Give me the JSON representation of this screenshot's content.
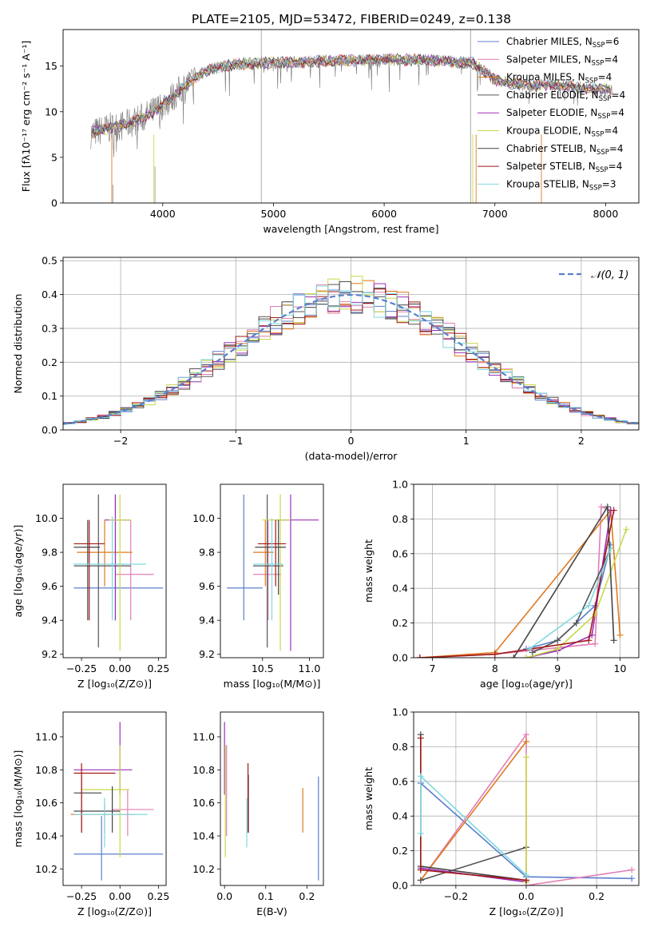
{
  "figure_title": "PLATE=2105, MJD=53472, FIBERID=0249, z=0.138",
  "model_colors": [
    "#5b7fcc",
    "#e27fb5",
    "#e07a1f",
    "#555555",
    "#9b30b8",
    "#c8d84a",
    "#444444",
    "#a01818",
    "#7fd8e0"
  ],
  "legend": [
    {
      "label": "Chabrier MILES, N",
      "sub": "SSP",
      "tail": "=6"
    },
    {
      "label": "Salpeter MILES, N",
      "sub": "SSP",
      "tail": "=4"
    },
    {
      "label": "Kroupa MILES, N",
      "sub": "SSP",
      "tail": "=4"
    },
    {
      "label": "Chabrier ELODIE, N",
      "sub": "SSP",
      "tail": "=4"
    },
    {
      "label": "Salpeter ELODIE, N",
      "sub": "SSP",
      "tail": "=4"
    },
    {
      "label": "Kroupa ELODIE, N",
      "sub": "SSP",
      "tail": "=4"
    },
    {
      "label": "Chabrier STELIB, N",
      "sub": "SSP",
      "tail": "=4"
    },
    {
      "label": "Salpeter STELIB, N",
      "sub": "SSP",
      "tail": "=4"
    },
    {
      "label": "Kroupa STELIB, N",
      "sub": "SSP",
      "tail": "=3"
    }
  ],
  "chart_data": [
    {
      "type": "line",
      "id": "spectrum",
      "xlabel": "wavelength [Angstrom, rest frame]",
      "ylabel": "Flux [fλ10⁻¹⁷ erg cm⁻² s⁻¹ A⁻¹]",
      "xlim": [
        3100,
        8300
      ],
      "ylim": [
        0,
        19
      ],
      "xticks": [
        4000,
        5000,
        6000,
        7000,
        8000
      ],
      "yticks": [
        0,
        5,
        10,
        15
      ],
      "grid": false,
      "legend": "top-right",
      "envelope": {
        "x": [
          3350,
          3450,
          3550,
          3650,
          3750,
          3850,
          3950,
          4050,
          4150,
          4250,
          4350,
          4450,
          4600,
          4800,
          5000,
          5200,
          5400,
          5600,
          5800,
          6000,
          6200,
          6400,
          6600,
          6800,
          6900,
          7000,
          7200,
          7400,
          7600,
          7800,
          8000
        ],
        "y": [
          7.6,
          8.0,
          8.3,
          8.5,
          9.0,
          9.5,
          10.3,
          11.2,
          12.3,
          13.3,
          14.2,
          14.7,
          15.1,
          15.3,
          15.4,
          15.4,
          15.5,
          15.6,
          15.6,
          15.7,
          15.7,
          15.6,
          15.5,
          15.3,
          14.5,
          13.5,
          13.0,
          12.9,
          12.9,
          12.6,
          12.4
        ]
      }
    },
    {
      "type": "histogram",
      "id": "residuals",
      "xlabel": "(data-model)/error",
      "ylabel": "Normed distribution",
      "xlim": [
        -2.5,
        2.5
      ],
      "ylim": [
        0,
        0.51
      ],
      "xticks": [
        -2,
        -1,
        0,
        1,
        2
      ],
      "xticklabels": [
        "−2",
        "−1",
        "0",
        "1",
        "2"
      ],
      "yticks": [
        0,
        0.1,
        0.2,
        0.3,
        0.4,
        0.5
      ],
      "yticklabels": [
        "0.0",
        "0.1",
        "0.2",
        "0.3",
        "0.4",
        "0.5"
      ],
      "grid": true,
      "legend": "top-right",
      "reference": {
        "name": "𝒩(0, 1)",
        "color": "#5b7fcc"
      }
    },
    {
      "type": "scatter",
      "id": "age_vs_Z",
      "xlabel": "Z [log₁₀(Z/Z⊙)]",
      "ylabel": "age [log₁₀(age/yr)]",
      "xlim": [
        -0.37,
        0.3
      ],
      "ylim": [
        9.18,
        10.2
      ],
      "xticks": [
        -0.25,
        0,
        0.25
      ],
      "xticklabels": [
        "−0.25",
        "0.00",
        "0.25"
      ],
      "yticks": [
        9.2,
        9.4,
        9.6,
        9.8,
        10.0
      ],
      "yticklabels": [
        "9.2",
        "9.4",
        "9.6",
        "9.8",
        "10.0"
      ],
      "grid": false,
      "points": [
        {
          "x": -0.03,
          "y": 9.59,
          "xlo": -0.3,
          "xhi": 0.28,
          "ylo": 9.4,
          "yhi": 10.14,
          "c": 0
        },
        {
          "x": 0.07,
          "y": 9.67,
          "xlo": -0.03,
          "xhi": 0.22,
          "ylo": 9.4,
          "yhi": 9.99,
          "c": 1
        },
        {
          "x": -0.1,
          "y": 9.8,
          "xlo": -0.28,
          "xhi": 0.08,
          "ylo": 9.6,
          "yhi": 9.99,
          "c": 2
        },
        {
          "x": -0.14,
          "y": 9.72,
          "xlo": -0.3,
          "xhi": 0.07,
          "ylo": 9.24,
          "yhi": 10.14,
          "c": 3
        },
        {
          "x": -0.03,
          "y": 9.99,
          "xlo": -0.1,
          "xhi": 0.07,
          "ylo": 9.4,
          "yhi": 10.14,
          "c": 4
        },
        {
          "x": 0.0,
          "y": 9.99,
          "xlo": -0.07,
          "xhi": 0.07,
          "ylo": 9.22,
          "yhi": 10.14,
          "c": 5
        },
        {
          "x": -0.21,
          "y": 9.83,
          "xlo": -0.3,
          "xhi": -0.13,
          "ylo": 9.4,
          "yhi": 9.99,
          "c": 6
        },
        {
          "x": -0.2,
          "y": 9.85,
          "xlo": -0.3,
          "xhi": -0.1,
          "ylo": 9.4,
          "yhi": 9.99,
          "c": 7
        },
        {
          "x": -0.05,
          "y": 9.73,
          "xlo": -0.3,
          "xhi": 0.17,
          "ylo": 9.4,
          "yhi": 10.01,
          "c": 8
        }
      ]
    },
    {
      "type": "scatter",
      "id": "age_vs_mass",
      "xlabel": "mass [log₁₀(M/M⊙)]",
      "ylabel": "",
      "xlim": [
        10.05,
        11.15
      ],
      "ylim": [
        9.18,
        10.2
      ],
      "xticks": [
        10.5,
        11.0
      ],
      "xticklabels": [
        "10.5",
        "11.0"
      ],
      "yticks": [
        9.2,
        9.4,
        9.6,
        9.8,
        10.0
      ],
      "yticklabels": [
        "9.2",
        "9.4",
        "9.6",
        "9.8",
        "10.0"
      ],
      "grid": false,
      "points": [
        {
          "x": 10.3,
          "y": 9.59,
          "xlo": 10.12,
          "xhi": 10.5,
          "ylo": 9.4,
          "yhi": 10.14,
          "c": 0
        },
        {
          "x": 10.56,
          "y": 9.67,
          "xlo": 10.4,
          "xhi": 10.7,
          "ylo": 9.4,
          "yhi": 9.99,
          "c": 1
        },
        {
          "x": 10.53,
          "y": 9.8,
          "xlo": 10.4,
          "xhi": 10.62,
          "ylo": 9.6,
          "yhi": 9.99,
          "c": 2
        },
        {
          "x": 10.55,
          "y": 9.72,
          "xlo": 10.4,
          "xhi": 10.72,
          "ylo": 9.24,
          "yhi": 10.14,
          "c": 3
        },
        {
          "x": 10.8,
          "y": 9.99,
          "xlo": 10.65,
          "xhi": 11.1,
          "ylo": 9.22,
          "yhi": 10.14,
          "c": 4
        },
        {
          "x": 10.69,
          "y": 9.99,
          "xlo": 10.5,
          "xhi": 10.8,
          "ylo": 9.22,
          "yhi": 10.14,
          "c": 5
        },
        {
          "x": 10.67,
          "y": 9.83,
          "xlo": 10.42,
          "xhi": 10.75,
          "ylo": 9.55,
          "yhi": 9.99,
          "c": 6
        },
        {
          "x": 10.64,
          "y": 9.85,
          "xlo": 10.45,
          "xhi": 10.75,
          "ylo": 9.6,
          "yhi": 9.99,
          "c": 7
        },
        {
          "x": 10.6,
          "y": 9.73,
          "xlo": 10.4,
          "xhi": 10.72,
          "ylo": 9.4,
          "yhi": 10.0,
          "c": 8
        }
      ]
    },
    {
      "type": "line",
      "id": "weight_vs_age",
      "xlabel": "age [log₁₀(age/yr)]",
      "ylabel": "mass weight",
      "xlim": [
        6.7,
        10.3
      ],
      "ylim": [
        0,
        1
      ],
      "xticks": [
        7,
        8,
        9,
        10
      ],
      "xticklabels": [
        "7",
        "8",
        "9",
        "10"
      ],
      "yticks": [
        0,
        0.2,
        0.4,
        0.6,
        0.8,
        1.0
      ],
      "yticklabels": [
        "0.0",
        "0.2",
        "0.4",
        "0.6",
        "0.8",
        "1.0"
      ],
      "grid": true,
      "series": [
        {
          "c": 0,
          "x": [
            8.5,
            9.0,
            9.3,
            9.6,
            9.85
          ],
          "y": [
            0.05,
            0.1,
            0.2,
            0.3,
            0.65
          ]
        },
        {
          "c": 1,
          "x": [
            6.8,
            8.0,
            9.6,
            9.7,
            9.85
          ],
          "y": [
            0.0,
            0.02,
            0.08,
            0.87,
            0.85
          ]
        },
        {
          "c": 2,
          "x": [
            6.8,
            8.0,
            9.85,
            10.0
          ],
          "y": [
            0.0,
            0.03,
            0.85,
            0.13
          ]
        },
        {
          "c": 3,
          "x": [
            8.6,
            9.0,
            9.3,
            9.85
          ],
          "y": [
            0.03,
            0.1,
            0.2,
            0.63
          ]
        },
        {
          "c": 4,
          "x": [
            8.5,
            9.0,
            9.55,
            9.85
          ],
          "y": [
            0.0,
            0.04,
            0.13,
            0.85
          ]
        },
        {
          "c": 5,
          "x": [
            8.5,
            9.0,
            9.6,
            10.1
          ],
          "y": [
            0.0,
            0.05,
            0.25,
            0.74
          ]
        },
        {
          "c": 6,
          "x": [
            8.3,
            9.8,
            9.9
          ],
          "y": [
            0.0,
            0.87,
            0.1
          ]
        },
        {
          "c": 7,
          "x": [
            6.8,
            8.0,
            9.5,
            9.9
          ],
          "y": [
            0.0,
            0.02,
            0.1,
            0.85
          ]
        },
        {
          "c": 8,
          "x": [
            8.55,
            9.5,
            9.85
          ],
          "y": [
            0.05,
            0.3,
            0.63
          ]
        }
      ]
    },
    {
      "type": "scatter",
      "id": "mass_vs_Z",
      "xlabel": "Z [log₁₀(Z/Z⊙)]",
      "ylabel": "mass [log₁₀(M/M⊙)]",
      "xlim": [
        -0.37,
        0.3
      ],
      "ylim": [
        10.1,
        11.15
      ],
      "xticks": [
        -0.25,
        0,
        0.25
      ],
      "xticklabels": [
        "−0.25",
        "0.00",
        "0.25"
      ],
      "yticks": [
        10.2,
        10.4,
        10.6,
        10.8,
        11.0
      ],
      "yticklabels": [
        "10.2",
        "10.4",
        "10.6",
        "10.8",
        "11.0"
      ],
      "grid": false,
      "points": [
        {
          "x": -0.12,
          "y": 10.29,
          "xlo": -0.3,
          "xhi": 0.28,
          "ylo": 10.13,
          "yhi": 10.52,
          "c": 0
        },
        {
          "x": 0.05,
          "y": 10.56,
          "xlo": -0.05,
          "xhi": 0.22,
          "ylo": 10.4,
          "yhi": 10.68,
          "c": 1
        },
        {
          "x": -0.1,
          "y": 10.53,
          "xlo": -0.32,
          "xhi": 0.1,
          "ylo": 10.42,
          "yhi": 10.6,
          "c": 2
        },
        {
          "x": -0.25,
          "y": 10.66,
          "xlo": -0.3,
          "xhi": -0.12,
          "ylo": 10.42,
          "yhi": 10.77,
          "c": 3
        },
        {
          "x": 0.0,
          "y": 10.8,
          "xlo": -0.3,
          "xhi": 0.08,
          "ylo": 10.65,
          "yhi": 11.09,
          "c": 4
        },
        {
          "x": 0.0,
          "y": 10.68,
          "xlo": -0.25,
          "xhi": 0.06,
          "ylo": 10.27,
          "yhi": 10.95,
          "c": 5
        },
        {
          "x": -0.05,
          "y": 10.55,
          "xlo": -0.3,
          "xhi": 0.0,
          "ylo": 10.42,
          "yhi": 10.7,
          "c": 6
        },
        {
          "x": -0.25,
          "y": 10.78,
          "xlo": -0.3,
          "xhi": -0.03,
          "ylo": 10.42,
          "yhi": 10.84,
          "c": 7
        },
        {
          "x": -0.1,
          "y": 10.53,
          "xlo": -0.3,
          "xhi": 0.18,
          "ylo": 10.33,
          "yhi": 10.63,
          "c": 8
        }
      ]
    },
    {
      "type": "scatter",
      "id": "mass_vs_EBV",
      "xlabel": "E(B-V)",
      "ylabel": "",
      "xlim": [
        -0.01,
        0.24
      ],
      "ylim": [
        10.1,
        11.15
      ],
      "xticks": [
        0,
        0.1,
        0.2
      ],
      "xticklabels": [
        "0.0",
        "0.1",
        "0.2"
      ],
      "yticks": [
        10.2,
        10.4,
        10.6,
        10.8,
        11.0
      ],
      "yticklabels": [
        "10.2",
        "10.4",
        "10.6",
        "10.8",
        "11.0"
      ],
      "grid": false,
      "points": [
        {
          "x": 0.228,
          "y": 10.29,
          "xlo": 0.228,
          "xhi": 0.228,
          "ylo": 10.13,
          "yhi": 10.76,
          "c": 0
        },
        {
          "x": 0.005,
          "y": 10.56,
          "xlo": 0.005,
          "xhi": 0.005,
          "ylo": 10.4,
          "yhi": 10.95,
          "c": 1
        },
        {
          "x": 0.19,
          "y": 10.53,
          "xlo": 0.19,
          "xhi": 0.19,
          "ylo": 10.42,
          "yhi": 10.69,
          "c": 2
        },
        {
          "x": 0.058,
          "y": 10.66,
          "xlo": 0.058,
          "xhi": 0.058,
          "ylo": 10.42,
          "yhi": 10.77,
          "c": 3
        },
        {
          "x": 0.0,
          "y": 10.8,
          "xlo": 0.0,
          "xhi": 0.0,
          "ylo": 10.65,
          "yhi": 11.09,
          "c": 4
        },
        {
          "x": 0.002,
          "y": 10.68,
          "xlo": 0.002,
          "xhi": 0.002,
          "ylo": 10.27,
          "yhi": 10.95,
          "c": 5
        },
        {
          "x": 0.057,
          "y": 10.55,
          "xlo": 0.057,
          "xhi": 0.057,
          "ylo": 10.42,
          "yhi": 10.77,
          "c": 6
        },
        {
          "x": 0.057,
          "y": 10.78,
          "xlo": 0.057,
          "xhi": 0.057,
          "ylo": 10.42,
          "yhi": 10.84,
          "c": 7
        },
        {
          "x": 0.054,
          "y": 10.53,
          "xlo": 0.054,
          "xhi": 0.054,
          "ylo": 10.33,
          "yhi": 10.63,
          "c": 8
        }
      ]
    },
    {
      "type": "line",
      "id": "weight_vs_Z",
      "xlabel": "Z [log₁₀(Z/Z⊙)]",
      "ylabel": "mass weight",
      "xlim": [
        -0.32,
        0.32
      ],
      "ylim": [
        0,
        1
      ],
      "xticks": [
        -0.2,
        0,
        0.2
      ],
      "xticklabels": [
        "−0.2",
        "0.0",
        "0.2"
      ],
      "yticks": [
        0,
        0.2,
        0.4,
        0.6,
        0.8,
        1.0
      ],
      "yticklabels": [
        "0.0",
        "0.2",
        "0.4",
        "0.6",
        "0.8",
        "1.0"
      ],
      "grid": true,
      "series": [
        {
          "c": 0,
          "x": [
            -0.3,
            0.0,
            0.3
          ],
          "y": [
            0.59,
            0.05,
            0.04
          ]
        },
        {
          "c": 1,
          "x": [
            -0.3,
            0.0,
            0.0,
            0.3
          ],
          "y": [
            0.03,
            0.87,
            0.0,
            0.09
          ]
        },
        {
          "c": 2,
          "x": [
            -0.3,
            0.0
          ],
          "y": [
            0.03,
            0.83
          ]
        },
        {
          "c": 3,
          "x": [
            -0.3,
            0.0
          ],
          "y": [
            0.03,
            0.22
          ]
        },
        {
          "c": 4,
          "x": [
            -0.3,
            0.0
          ],
          "y": [
            0.1,
            0.02
          ]
        },
        {
          "c": 5,
          "x": [
            0.0,
            0.0
          ],
          "y": [
            0.02,
            0.74
          ]
        },
        {
          "c": 6,
          "x": [
            -0.3,
            -0.3,
            0.0
          ],
          "y": [
            0.87,
            0.11,
            0.03
          ]
        },
        {
          "c": 7,
          "x": [
            -0.3,
            -0.3,
            0.0
          ],
          "y": [
            0.85,
            0.09,
            0.03
          ]
        },
        {
          "c": 8,
          "x": [
            -0.3,
            -0.3,
            0.0
          ],
          "y": [
            0.3,
            0.63,
            0.06
          ]
        }
      ]
    }
  ]
}
